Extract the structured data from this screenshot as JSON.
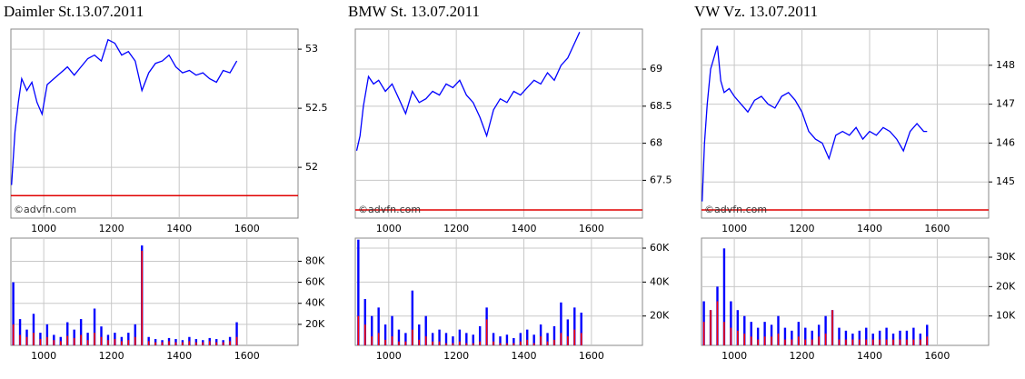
{
  "chart_data": [
    {
      "type": "line",
      "title": "Daimler St.13.07.2011",
      "watermark": "©advfn.com",
      "color": "#0000ff",
      "x": [
        905,
        915,
        925,
        935,
        950,
        965,
        980,
        995,
        1010,
        1030,
        1050,
        1070,
        1090,
        1110,
        1130,
        1150,
        1170,
        1190,
        1210,
        1230,
        1250,
        1270,
        1290,
        1310,
        1330,
        1350,
        1370,
        1390,
        1410,
        1430,
        1450,
        1470,
        1490,
        1510,
        1530,
        1550,
        1570
      ],
      "values": [
        51.85,
        52.3,
        52.55,
        52.75,
        52.65,
        52.72,
        52.55,
        52.45,
        52.7,
        52.75,
        52.8,
        52.85,
        52.78,
        52.85,
        52.92,
        52.95,
        52.9,
        53.08,
        53.05,
        52.95,
        52.98,
        52.9,
        52.65,
        52.8,
        52.88,
        52.9,
        52.95,
        52.85,
        52.8,
        52.82,
        52.78,
        52.8,
        52.75,
        52.72,
        52.82,
        52.8,
        52.9
      ],
      "reference_line": 51.76,
      "reference_color": "#e00000",
      "xlim": [
        903,
        1751
      ],
      "xticks": [
        1000,
        1200,
        1400,
        1600
      ],
      "ylim": [
        51.57,
        53.17
      ],
      "yticks": [
        52,
        52.5,
        53
      ],
      "grid": true
    },
    {
      "type": "bar",
      "x": [
        910,
        930,
        950,
        970,
        990,
        1010,
        1030,
        1050,
        1070,
        1090,
        1110,
        1130,
        1150,
        1170,
        1190,
        1210,
        1230,
        1250,
        1270,
        1290,
        1310,
        1330,
        1350,
        1370,
        1390,
        1410,
        1430,
        1450,
        1470,
        1490,
        1510,
        1530,
        1550,
        1570
      ],
      "series": [
        {
          "color": "#0000ff",
          "values": [
            60000,
            25000,
            15000,
            30000,
            12000,
            20000,
            10000,
            8000,
            22000,
            15000,
            25000,
            12000,
            35000,
            18000,
            10000,
            12000,
            8000,
            12000,
            20000,
            95000,
            8000,
            6000,
            5000,
            7000,
            6000,
            5000,
            8000,
            6000,
            5000,
            7000,
            6000,
            5000,
            8000,
            22000
          ]
        },
        {
          "color": "#ff0000",
          "values": [
            20000,
            10000,
            8000,
            12000,
            6000,
            8000,
            5000,
            4000,
            9000,
            7000,
            10000,
            5000,
            12000,
            8000,
            5000,
            6000,
            4000,
            5000,
            8000,
            90000,
            4000,
            3000,
            3000,
            4000,
            3000,
            3000,
            4000,
            3000,
            3000,
            4000,
            3000,
            3000,
            4000,
            8000
          ]
        }
      ],
      "xlim": [
        903,
        1751
      ],
      "xticks": [
        1000,
        1200,
        1400,
        1600
      ],
      "ylim": [
        0,
        102000
      ],
      "yticks": [
        {
          "value": 20000,
          "label": "20K"
        },
        {
          "value": 40000,
          "label": "40K"
        },
        {
          "value": 60000,
          "label": "60K"
        },
        {
          "value": 80000,
          "label": "80K"
        }
      ],
      "grid": true
    },
    {
      "type": "line",
      "title": "BMW St. 13.07.2011",
      "watermark": "©advfn.com",
      "color": "#0000ff",
      "x": [
        905,
        915,
        925,
        940,
        955,
        970,
        990,
        1010,
        1030,
        1050,
        1070,
        1090,
        1110,
        1130,
        1150,
        1170,
        1190,
        1210,
        1230,
        1250,
        1270,
        1290,
        1310,
        1330,
        1350,
        1370,
        1390,
        1410,
        1430,
        1450,
        1470,
        1490,
        1510,
        1530,
        1550,
        1565
      ],
      "values": [
        67.9,
        68.1,
        68.5,
        68.9,
        68.8,
        68.85,
        68.7,
        68.8,
        68.6,
        68.4,
        68.7,
        68.55,
        68.6,
        68.7,
        68.65,
        68.8,
        68.75,
        68.85,
        68.65,
        68.55,
        68.35,
        68.1,
        68.45,
        68.6,
        68.55,
        68.7,
        68.65,
        68.75,
        68.85,
        68.8,
        68.95,
        68.85,
        69.05,
        69.15,
        69.35,
        69.5
      ],
      "reference_line": 67.1,
      "reference_color": "#e00000",
      "xlim": [
        901,
        1751
      ],
      "xticks": [
        1000,
        1200,
        1400,
        1600
      ],
      "ylim": [
        66.99,
        69.54
      ],
      "yticks": [
        67.5,
        68,
        68.5,
        69
      ],
      "grid": true
    },
    {
      "type": "bar",
      "x": [
        910,
        930,
        950,
        970,
        990,
        1010,
        1030,
        1050,
        1070,
        1090,
        1110,
        1130,
        1150,
        1170,
        1190,
        1210,
        1230,
        1250,
        1270,
        1290,
        1310,
        1330,
        1350,
        1370,
        1390,
        1410,
        1430,
        1450,
        1470,
        1490,
        1510,
        1530,
        1550,
        1570
      ],
      "series": [
        {
          "color": "#0000ff",
          "values": [
            65000,
            30000,
            20000,
            25000,
            15000,
            20000,
            12000,
            10000,
            35000,
            15000,
            20000,
            10000,
            12000,
            10000,
            8000,
            12000,
            10000,
            9000,
            14000,
            25000,
            10000,
            8000,
            9000,
            7000,
            10000,
            12000,
            9000,
            15000,
            10000,
            14000,
            28000,
            18000,
            25000,
            22000
          ]
        },
        {
          "color": "#ff0000",
          "values": [
            20000,
            15000,
            8000,
            10000,
            6000,
            8000,
            5000,
            5000,
            12000,
            6000,
            8000,
            5000,
            5000,
            4000,
            4000,
            5000,
            4000,
            4000,
            5000,
            18000,
            5000,
            4000,
            4000,
            4000,
            5000,
            6000,
            4000,
            8000,
            5000,
            6000,
            10000,
            8000,
            12000,
            10000
          ]
        }
      ],
      "xlim": [
        901,
        1751
      ],
      "xticks": [
        1000,
        1200,
        1400,
        1600
      ],
      "ylim": [
        2700,
        65900
      ],
      "yticks": [
        {
          "value": 20000,
          "label": "20K"
        },
        {
          "value": 40000,
          "label": "40K"
        },
        {
          "value": 60000,
          "label": "60K"
        }
      ],
      "grid": true
    },
    {
      "type": "line",
      "title": "VW Vz. 13.07.2011",
      "watermark": "©advfn.com",
      "color": "#0000ff",
      "x": [
        905,
        912,
        920,
        930,
        940,
        950,
        960,
        970,
        985,
        1000,
        1020,
        1040,
        1060,
        1080,
        1100,
        1120,
        1140,
        1160,
        1180,
        1200,
        1220,
        1240,
        1260,
        1280,
        1300,
        1320,
        1340,
        1360,
        1380,
        1400,
        1420,
        1440,
        1460,
        1480,
        1500,
        1520,
        1540,
        1560,
        1570
      ],
      "values": [
        144.5,
        146.0,
        147.0,
        147.9,
        148.2,
        148.5,
        147.6,
        147.3,
        147.4,
        147.2,
        147.0,
        146.8,
        147.1,
        147.2,
        147.0,
        146.9,
        147.2,
        147.3,
        147.1,
        146.8,
        146.3,
        146.1,
        146.0,
        145.6,
        146.2,
        146.3,
        146.2,
        146.4,
        146.1,
        146.3,
        146.2,
        146.4,
        146.3,
        146.1,
        145.8,
        146.3,
        146.5,
        146.3,
        146.3
      ],
      "reference_line": 144.28,
      "reference_color": "#e00000",
      "xlim": [
        903,
        1752
      ],
      "xticks": [
        1000,
        1200,
        1400,
        1600
      ],
      "ylim": [
        144.07,
        148.93
      ],
      "yticks": [
        145,
        146,
        147,
        148
      ],
      "grid": true
    },
    {
      "type": "bar",
      "x": [
        910,
        930,
        950,
        970,
        990,
        1010,
        1030,
        1050,
        1070,
        1090,
        1110,
        1130,
        1150,
        1170,
        1190,
        1210,
        1230,
        1250,
        1270,
        1290,
        1310,
        1330,
        1350,
        1370,
        1390,
        1410,
        1430,
        1450,
        1470,
        1490,
        1510,
        1530,
        1550,
        1570
      ],
      "series": [
        {
          "color": "#0000ff",
          "values": [
            15000,
            12000,
            20000,
            33000,
            15000,
            12000,
            10000,
            8000,
            6000,
            8000,
            7000,
            10000,
            6000,
            5000,
            8000,
            6000,
            5000,
            7000,
            10000,
            12000,
            6000,
            5000,
            4000,
            5000,
            6000,
            4000,
            5000,
            6000,
            4000,
            5000,
            5000,
            6000,
            4000,
            7000
          ]
        },
        {
          "color": "#ff0000",
          "values": [
            8000,
            12000,
            15000,
            8000,
            6000,
            5000,
            4000,
            3000,
            2000,
            3000,
            3000,
            4000,
            2000,
            2000,
            3000,
            2000,
            2000,
            3000,
            4000,
            12000,
            2000,
            2000,
            2000,
            2000,
            2000,
            2000,
            2000,
            2000,
            2000,
            2000,
            2000,
            2000,
            2000,
            3000
          ]
        }
      ],
      "xlim": [
        903,
        1752
      ],
      "xticks": [
        1000,
        1200,
        1400,
        1600
      ],
      "ylim": [
        0,
        36500
      ],
      "yticks": [
        {
          "value": 10000,
          "label": "10K"
        },
        {
          "value": 20000,
          "label": "20K"
        },
        {
          "value": 30000,
          "label": "30K"
        }
      ],
      "grid": true
    }
  ]
}
